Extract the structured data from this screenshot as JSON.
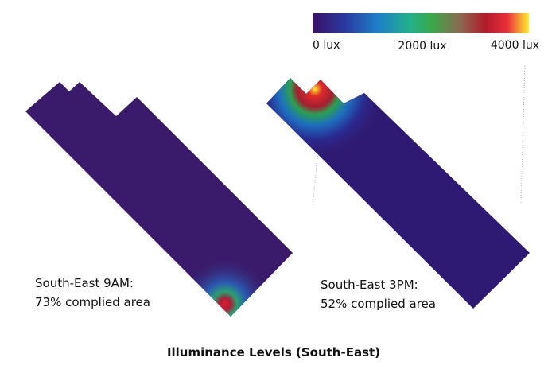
{
  "colorbar": {
    "labels": [
      "0 lux",
      "2000 lux",
      "4000 lux"
    ]
  },
  "panels": [
    {
      "caption": [
        "South-East 9AM:",
        "73% complied area"
      ]
    },
    {
      "caption": [
        "South-East 3PM:",
        "52% complied area"
      ]
    }
  ],
  "title": "Illuminance Levels (South-East)"
}
